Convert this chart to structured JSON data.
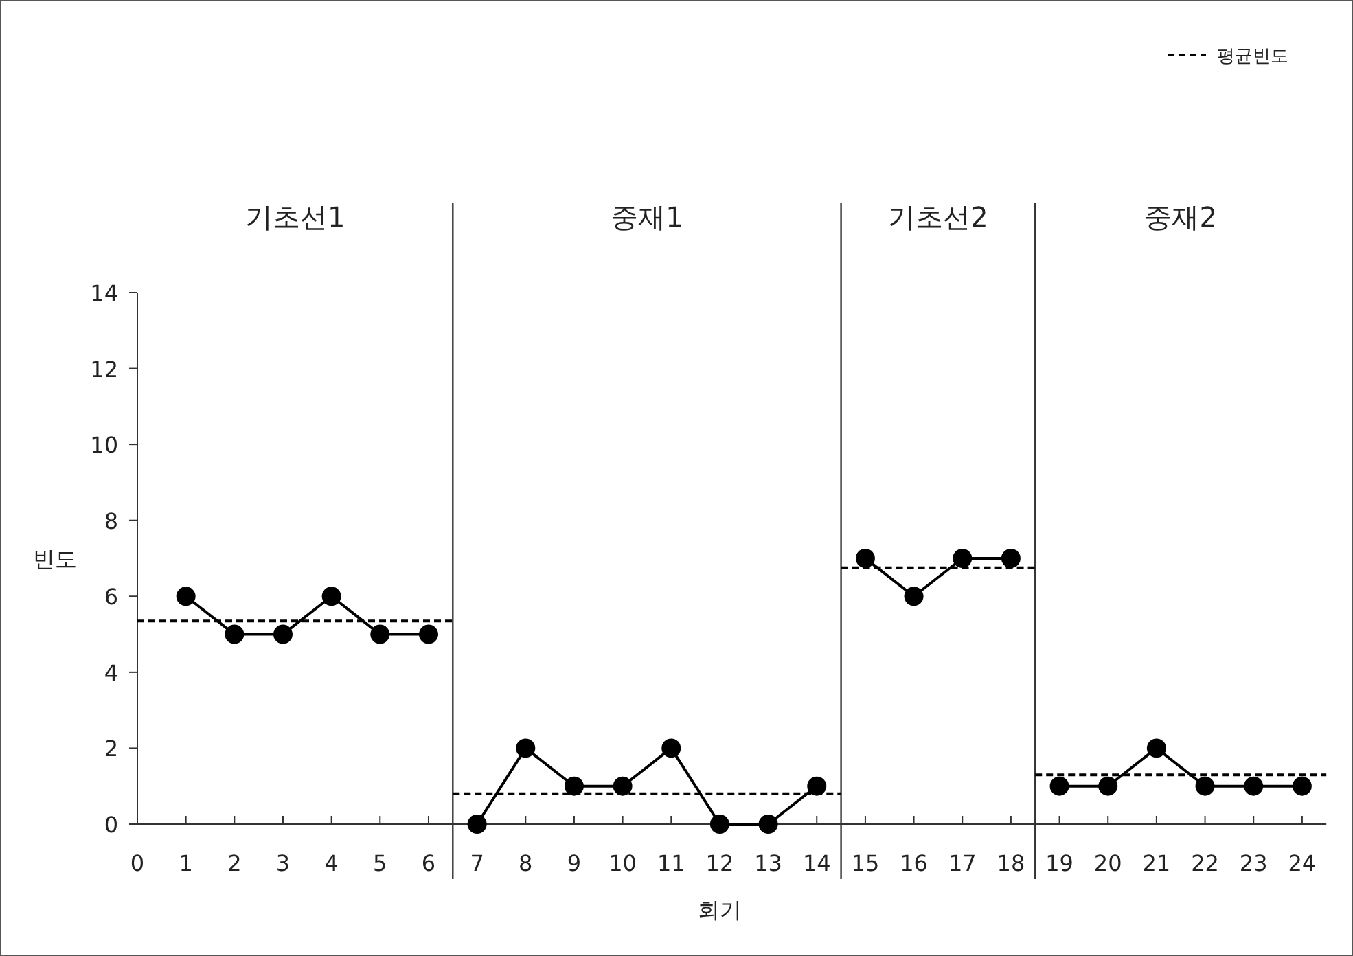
{
  "chart_data": {
    "type": "line",
    "xlabel": "회기",
    "ylabel": "빈도",
    "xlim": [
      0,
      24.5
    ],
    "xticks": [
      0,
      1,
      2,
      3,
      4,
      5,
      6,
      7,
      8,
      9,
      10,
      11,
      12,
      13,
      14,
      15,
      16,
      17,
      18,
      19,
      20,
      21,
      22,
      23,
      24
    ],
    "ylim": [
      0,
      14
    ],
    "yticks": [
      0,
      2,
      4,
      6,
      8,
      10,
      12,
      14
    ],
    "grid": false,
    "legend": "top right",
    "series": [
      {
        "color": "#000000",
        "marker": "circle",
        "line_style": "solid",
        "x": [
          1,
          2,
          3,
          4,
          5,
          6,
          6.5,
          7,
          8,
          9,
          10,
          11,
          12,
          13,
          14,
          14.5,
          15,
          16,
          17,
          18,
          18.5,
          19,
          20,
          21,
          22,
          23,
          24
        ],
        "values": [
          6,
          5,
          5,
          6,
          5,
          5,
          null,
          0,
          2,
          1,
          1,
          2,
          0,
          0,
          1,
          null,
          7,
          6,
          7,
          7,
          null,
          1,
          1,
          2,
          1,
          1,
          1
        ]
      },
      {
        "name": "평균빈도",
        "color": "#000000",
        "marker": "none",
        "line_style": "dashed",
        "x": [
          0,
          6.5
        ],
        "values": [
          5.35,
          5.35
        ]
      },
      {
        "color": "#000000",
        "marker": "none",
        "line_style": "dashed",
        "x": [
          6.5,
          14.5
        ],
        "values": [
          0.8,
          0.8
        ]
      },
      {
        "color": "#000000",
        "marker": "none",
        "line_style": "dashed",
        "x": [
          14.5,
          18.5
        ],
        "values": [
          6.75,
          6.75
        ]
      },
      {
        "color": "#000000",
        "marker": "none",
        "line_style": "dashed",
        "x": [
          18.5,
          24.5
        ],
        "values": [
          1.3,
          1.3
        ]
      }
    ],
    "ref_lines": [
      {
        "axis": "x",
        "value": 6.5
      },
      {
        "axis": "x",
        "value": 14.5
      },
      {
        "axis": "x",
        "value": 18.5
      }
    ],
    "annotations": [
      "기초선1",
      "중재1",
      "기초선2",
      "중재2"
    ]
  }
}
